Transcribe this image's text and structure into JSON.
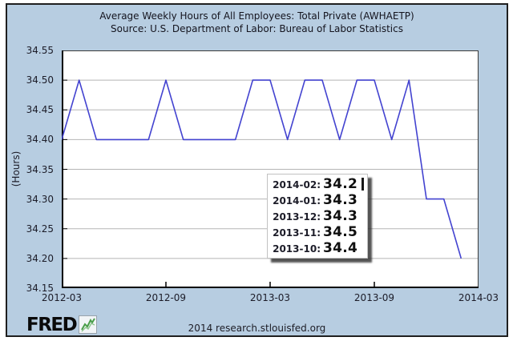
{
  "title": {
    "line1": "Average Weekly Hours of All Employees: Total Private (AWHAETP)",
    "line2": "Source: U.S. Department of Labor: Bureau of Labor Statistics"
  },
  "y_axis_title": "(Hours)",
  "tooltip": {
    "rows": [
      {
        "date": "2014-02:",
        "value": "34.2"
      },
      {
        "date": "2014-01:",
        "value": "34.3"
      },
      {
        "date": "2013-12:",
        "value": "34.3"
      },
      {
        "date": "2013-11:",
        "value": "34.5"
      },
      {
        "date": "2013-10:",
        "value": "34.4"
      }
    ]
  },
  "footer": {
    "logo_text": "FRED",
    "credit": "2014 research.stlouisfed.org"
  },
  "colors": {
    "background": "#b7cde1",
    "plot_background": "#ffffff",
    "line": "#4343d0",
    "gridline": "#b5b5b5",
    "axis": "#000000",
    "frame_border": "#1f1f1f",
    "text": "#1c1c28",
    "logo_green": "#4a9e4a"
  },
  "chart_data": {
    "type": "line",
    "title": "Average Weekly Hours of All Employees: Total Private (AWHAETP)",
    "subtitle": "Source: U.S. Department of Labor: Bureau of Labor Statistics",
    "ylabel": "(Hours)",
    "xlabel": "",
    "x": [
      "2012-03",
      "2012-04",
      "2012-05",
      "2012-06",
      "2012-07",
      "2012-08",
      "2012-09",
      "2012-10",
      "2012-11",
      "2012-12",
      "2013-01",
      "2013-02",
      "2013-03",
      "2013-04",
      "2013-05",
      "2013-06",
      "2013-07",
      "2013-08",
      "2013-09",
      "2013-10",
      "2013-11",
      "2013-12",
      "2014-01",
      "2014-02"
    ],
    "values": [
      34.4,
      34.5,
      34.4,
      34.4,
      34.4,
      34.4,
      34.5,
      34.4,
      34.4,
      34.4,
      34.4,
      34.5,
      34.5,
      34.4,
      34.5,
      34.5,
      34.4,
      34.5,
      34.5,
      34.4,
      34.5,
      34.3,
      34.3,
      34.2
    ],
    "ylim": [
      34.15,
      34.55
    ],
    "x_range": [
      "2012-03",
      "2014-03"
    ],
    "y_tick_labels": [
      "34.55",
      "34.50",
      "34.45",
      "34.40",
      "34.35",
      "34.30",
      "34.25",
      "34.20",
      "34.15"
    ],
    "x_tick_labels": [
      "2012-03",
      "2012-09",
      "2013-03",
      "2013-09",
      "2014-03"
    ],
    "grid": "horizontal",
    "legend": "none",
    "line_color": "#4343d0"
  }
}
